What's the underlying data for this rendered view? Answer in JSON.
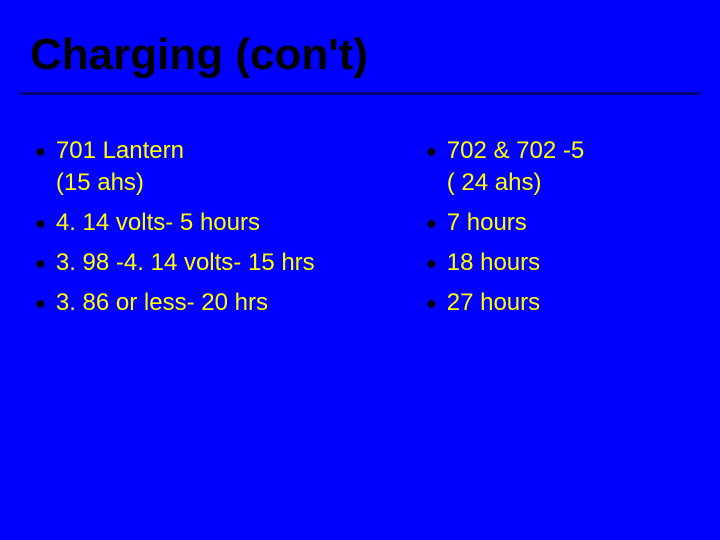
{
  "slide": {
    "background_color": "#0000ff",
    "title": {
      "text": "Charging (con't)",
      "color": "#000000",
      "fontsize": 44,
      "fontweight": "bold"
    },
    "underline_color": "#000080",
    "bullet_color": "#000000",
    "text_color": "#ffff00",
    "body_fontsize": 24,
    "columns": [
      {
        "items": [
          {
            "line1": "701 Lantern",
            "line2": "(15 ahs)"
          },
          {
            "line1": " 4. 14 volts- 5 hours"
          },
          {
            "line1": "3. 98 -4. 14 volts- 15 hrs"
          },
          {
            "line1": "3. 86 or less- 20 hrs"
          }
        ]
      },
      {
        "items": [
          {
            "line1": "702 & 702 -5",
            "line2": " ( 24 ahs)"
          },
          {
            "line1": "7 hours"
          },
          {
            "line1": "18 hours"
          },
          {
            "line1": "27 hours"
          }
        ]
      }
    ]
  }
}
